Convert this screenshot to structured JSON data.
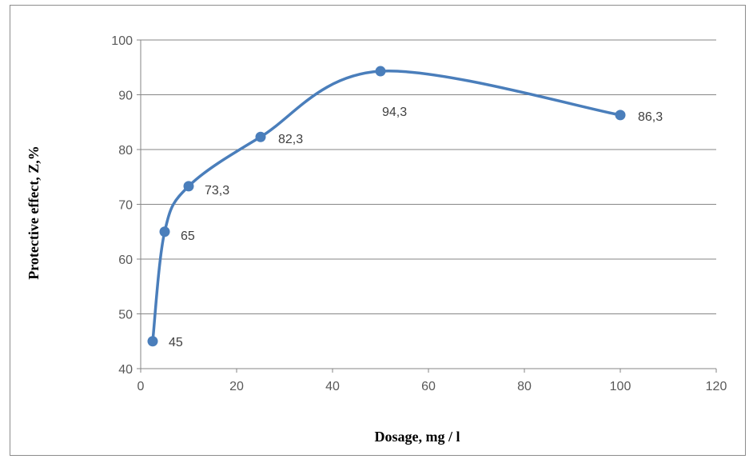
{
  "chart_data": {
    "type": "line",
    "title": "",
    "xlabel": "Dosage, mg / l",
    "ylabel": "Protective effect, Z,%",
    "xlim": [
      0,
      120
    ],
    "ylim": [
      40,
      100
    ],
    "xticks": [
      0,
      20,
      40,
      60,
      80,
      100,
      120
    ],
    "yticks": [
      40,
      50,
      60,
      70,
      80,
      90,
      100
    ],
    "grid": "horizontal",
    "smooth": true,
    "series": [
      {
        "x": [
          2.5,
          5,
          10,
          25,
          50,
          100
        ],
        "y": [
          45,
          65,
          73.3,
          82.3,
          94.3,
          86.3
        ],
        "labels": [
          "45",
          "65",
          "73,3",
          "82,3",
          "94,3",
          "86,3"
        ]
      }
    ],
    "colors": {
      "series": "#4a7ebb",
      "grid": "#868686",
      "axis": "#868686"
    }
  }
}
